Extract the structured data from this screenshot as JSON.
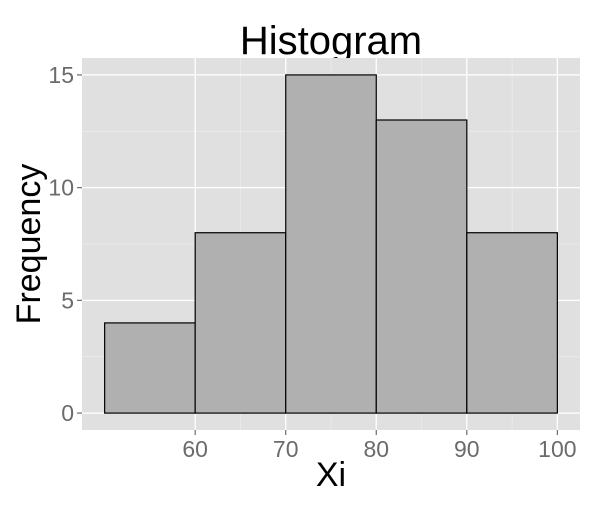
{
  "chart_data": {
    "type": "bar",
    "title": "Histogram",
    "xlabel": "Xi",
    "ylabel": "Frequency",
    "bins": [
      {
        "start": 50,
        "end": 60,
        "count": 4
      },
      {
        "start": 60,
        "end": 70,
        "count": 8
      },
      {
        "start": 70,
        "end": 80,
        "count": 15
      },
      {
        "start": 80,
        "end": 90,
        "count": 13
      },
      {
        "start": 90,
        "end": 100,
        "count": 8
      }
    ],
    "xlim": [
      47.5,
      102.5
    ],
    "ylim": [
      -0.75,
      15.75
    ],
    "x_ticks": [
      60,
      70,
      80,
      90,
      100
    ],
    "y_ticks": [
      0,
      5,
      10,
      15
    ],
    "grid": true,
    "colors": {
      "panel": "#e0e0e0",
      "bar_fill": "#b0b0b0",
      "bar_outline": "#000000",
      "grid": "#ffffff"
    }
  }
}
